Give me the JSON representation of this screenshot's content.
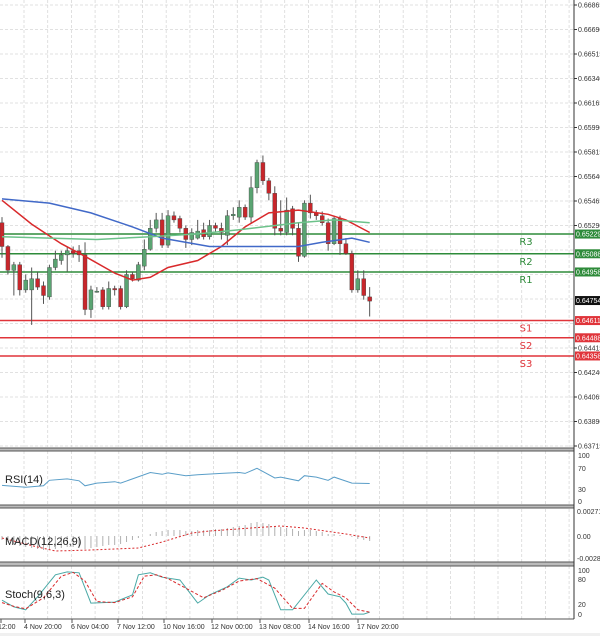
{
  "colors": {
    "bull": "#5aa472",
    "bear": "#c8262b",
    "resistance": "#2e8b3a",
    "support": "#e0343a",
    "current": "#111111",
    "ma_fast": "#d9292b",
    "ma_slow": "#4169c8",
    "ma_mid": "#6cc28a",
    "rsi": "#5a9ec8",
    "stoch_main": "#4aa9a6",
    "stoch_signal": "#d9292b",
    "macd_signal": "#d9292b",
    "macd_hist": "#b0b0b0",
    "grid": "#d8d8d8"
  },
  "chart_data": [
    {
      "type": "candlestick",
      "ylim": [
        0.63715,
        0.66865
      ],
      "y_ticks": [
        "0.66865",
        "0.66690",
        "0.66515",
        "0.66340",
        "0.66165",
        "0.65990",
        "0.65815",
        "0.65640",
        "0.65465",
        "0.65290",
        "0.64415",
        "0.64240",
        "0.64065",
        "0.63890",
        "0.63715"
      ],
      "x_ticks": [
        "12:00",
        "4 Nov 20:00",
        "6 Nov 04:00",
        "7 Nov 12:00",
        "10 Nov 16:00",
        "12 Nov 00:00",
        "13 Nov 08:00",
        "14 Nov 16:00",
        "17 Nov 20:00"
      ],
      "grid": true,
      "ohlc": [
        [
          0.6531,
          0.6535,
          0.6506,
          0.6514
        ],
        [
          0.6514,
          0.6515,
          0.6494,
          0.6497
        ],
        [
          0.6497,
          0.6503,
          0.6479,
          0.6501
        ],
        [
          0.6501,
          0.6503,
          0.6479,
          0.6483
        ],
        [
          0.6483,
          0.6494,
          0.6481,
          0.649
        ],
        [
          0.6483,
          0.6499,
          0.6458,
          0.6491
        ],
        [
          0.6491,
          0.6496,
          0.6483,
          0.6485
        ],
        [
          0.6486,
          0.6489,
          0.6473,
          0.6479
        ],
        [
          0.6478,
          0.6501,
          0.6476,
          0.6499
        ],
        [
          0.6499,
          0.6511,
          0.6497,
          0.6505
        ],
        [
          0.6504,
          0.6511,
          0.6501,
          0.6508
        ],
        [
          0.6508,
          0.6514,
          0.6496,
          0.6511
        ],
        [
          0.6511,
          0.6514,
          0.6506,
          0.6509
        ],
        [
          0.6511,
          0.6515,
          0.6503,
          0.6508
        ],
        [
          0.6508,
          0.6517,
          0.6465,
          0.6469
        ],
        [
          0.6469,
          0.6486,
          0.6463,
          0.6483
        ],
        [
          0.6482,
          0.6485,
          0.6481,
          0.6482
        ],
        [
          0.6483,
          0.6485,
          0.6469,
          0.6471
        ],
        [
          0.6471,
          0.6489,
          0.6469,
          0.6484
        ],
        [
          0.6484,
          0.6486,
          0.6479,
          0.6483
        ],
        [
          0.6484,
          0.6486,
          0.6469,
          0.6471
        ],
        [
          0.6471,
          0.6497,
          0.647,
          0.6494
        ],
        [
          0.6494,
          0.6496,
          0.6489,
          0.6491
        ],
        [
          0.649,
          0.6503,
          0.6489,
          0.6501
        ],
        [
          0.65,
          0.6519,
          0.6497,
          0.6512
        ],
        [
          0.6512,
          0.6533,
          0.6511,
          0.6527
        ],
        [
          0.6527,
          0.6538,
          0.6524,
          0.6533
        ],
        [
          0.6533,
          0.6538,
          0.6513,
          0.6515
        ],
        [
          0.6515,
          0.654,
          0.6513,
          0.6536
        ],
        [
          0.6536,
          0.6539,
          0.6531,
          0.6533
        ],
        [
          0.6534,
          0.6536,
          0.6524,
          0.6527
        ],
        [
          0.6527,
          0.6529,
          0.6513,
          0.6519
        ],
        [
          0.6519,
          0.6527,
          0.6515,
          0.6524
        ],
        [
          0.652,
          0.6533,
          0.6519,
          0.6525
        ],
        [
          0.6526,
          0.6531,
          0.6519,
          0.6521
        ],
        [
          0.6521,
          0.6533,
          0.6519,
          0.6529
        ],
        [
          0.6529,
          0.6531,
          0.6524,
          0.6527
        ],
        [
          0.6527,
          0.6531,
          0.6519,
          0.6524
        ],
        [
          0.6522,
          0.654,
          0.6515,
          0.6536
        ],
        [
          0.6536,
          0.6542,
          0.6533,
          0.6537
        ],
        [
          0.6535,
          0.6547,
          0.6531,
          0.6542
        ],
        [
          0.6542,
          0.6544,
          0.6533,
          0.6535
        ],
        [
          0.6535,
          0.6564,
          0.6531,
          0.6556
        ],
        [
          0.6556,
          0.6576,
          0.6552,
          0.6574
        ],
        [
          0.6574,
          0.6579,
          0.6558,
          0.6561
        ],
        [
          0.6561,
          0.6563,
          0.6547,
          0.6552
        ],
        [
          0.6552,
          0.6557,
          0.6522,
          0.6527
        ],
        [
          0.6527,
          0.6547,
          0.6522,
          0.6525
        ],
        [
          0.6524,
          0.6549,
          0.6522,
          0.654
        ],
        [
          0.6541,
          0.6543,
          0.6522,
          0.6527
        ],
        [
          0.6527,
          0.6531,
          0.6503,
          0.6507
        ],
        [
          0.6507,
          0.6547,
          0.6506,
          0.6545
        ],
        [
          0.6545,
          0.6551,
          0.6534,
          0.6538
        ],
        [
          0.6538,
          0.654,
          0.6533,
          0.6536
        ],
        [
          0.6536,
          0.6539,
          0.6529,
          0.6531
        ],
        [
          0.6531,
          0.6534,
          0.6511,
          0.6516
        ],
        [
          0.6516,
          0.6536,
          0.6515,
          0.6534
        ],
        [
          0.6534,
          0.6536,
          0.6508,
          0.6516
        ],
        [
          0.6516,
          0.652,
          0.6508,
          0.6509
        ],
        [
          0.6509,
          0.6511,
          0.6481,
          0.6483
        ],
        [
          0.6483,
          0.6497,
          0.6481,
          0.6491
        ],
        [
          0.6491,
          0.6497,
          0.6476,
          0.6479
        ],
        [
          0.6478,
          0.6485,
          0.6464,
          0.6475
        ]
      ],
      "moving_averages": [
        {
          "color_key": "ma_fast",
          "points": [
            [
              0,
              0.6547
            ],
            [
              5,
              0.653
            ],
            [
              10,
              0.6516
            ],
            [
              14,
              0.6507
            ],
            [
              19,
              0.6495
            ],
            [
              22,
              0.649
            ],
            [
              25,
              0.6492
            ],
            [
              28,
              0.6499
            ],
            [
              33,
              0.6504
            ],
            [
              37,
              0.6514
            ],
            [
              41,
              0.6528
            ],
            [
              45,
              0.6538
            ],
            [
              50,
              0.654
            ],
            [
              55,
              0.6537
            ],
            [
              58,
              0.6533
            ],
            [
              62,
              0.6524
            ]
          ]
        },
        {
          "color_key": "ma_slow",
          "points": [
            [
              0,
              0.6548
            ],
            [
              8,
              0.6545
            ],
            [
              15,
              0.6538
            ],
            [
              22,
              0.6528
            ],
            [
              27,
              0.652
            ],
            [
              35,
              0.6514
            ],
            [
              43,
              0.6514
            ],
            [
              50,
              0.6514
            ],
            [
              54,
              0.6517
            ],
            [
              59,
              0.652
            ],
            [
              62,
              0.6517
            ]
          ]
        },
        {
          "color_key": "ma_mid",
          "points": [
            [
              0,
              0.6521
            ],
            [
              8,
              0.652
            ],
            [
              16,
              0.6519
            ],
            [
              25,
              0.6521
            ],
            [
              33,
              0.6523
            ],
            [
              40,
              0.6526
            ],
            [
              50,
              0.6531
            ],
            [
              56,
              0.6533
            ],
            [
              62,
              0.6531
            ]
          ]
        }
      ],
      "levels": [
        {
          "label": "R3",
          "value": "0.65229",
          "type": "resistance"
        },
        {
          "label": "R2",
          "value": "0.65088",
          "type": "resistance"
        },
        {
          "label": "R1",
          "value": "0.64958",
          "type": "resistance"
        },
        {
          "label": "S1",
          "value": "0.64611",
          "type": "support"
        },
        {
          "label": "S2",
          "value": "0.64488",
          "type": "support"
        },
        {
          "label": "S3",
          "value": "0.64358",
          "type": "support"
        }
      ],
      "current_price": "0.64754"
    },
    {
      "type": "line",
      "title": "RSI(14)",
      "ylim": [
        0,
        100
      ],
      "y_ticks": [
        "100",
        "70",
        "30",
        "0"
      ],
      "points": [
        [
          0,
          34
        ],
        [
          4,
          30
        ],
        [
          7,
          33
        ],
        [
          8,
          45
        ],
        [
          11,
          48
        ],
        [
          13,
          44
        ],
        [
          14,
          33
        ],
        [
          16,
          39
        ],
        [
          19,
          42
        ],
        [
          20,
          39
        ],
        [
          22,
          48
        ],
        [
          25,
          62
        ],
        [
          27,
          58
        ],
        [
          28,
          61
        ],
        [
          31,
          55
        ],
        [
          33,
          57
        ],
        [
          37,
          60
        ],
        [
          40,
          62
        ],
        [
          41,
          60
        ],
        [
          43,
          71
        ],
        [
          46,
          50
        ],
        [
          47,
          52
        ],
        [
          50,
          44
        ],
        [
          51,
          55
        ],
        [
          53,
          52
        ],
        [
          55,
          45
        ],
        [
          56,
          52
        ],
        [
          59,
          39
        ],
        [
          62,
          38
        ]
      ]
    },
    {
      "type": "bar+line",
      "title": "MACD(12,26,9)",
      "ylim": [
        -0.0028,
        0.00271
      ],
      "y_ticks": [
        "0.00271",
        "0.00",
        "-0.0028"
      ],
      "histogram": [
        -0.0004,
        -0.0006,
        -0.0008,
        -0.001,
        -0.0011,
        -0.0012,
        -0.0013,
        -0.0014,
        -0.0014,
        -0.0013,
        -0.0012,
        -0.0011,
        -0.0011,
        -0.0012,
        -0.0013,
        -0.0012,
        -0.0011,
        -0.001,
        -0.0009,
        -0.0009,
        -0.0008,
        -0.0006,
        -0.0004,
        -0.0002,
        0.0,
        0.0002,
        0.0004,
        0.0005,
        0.0006,
        0.0006,
        0.0006,
        0.0005,
        0.0005,
        0.0006,
        0.0006,
        0.0006,
        0.0007,
        0.0007,
        0.0008,
        0.0009,
        0.001,
        0.0011,
        0.0013,
        0.0014,
        0.0013,
        0.0012,
        0.001,
        0.0009,
        0.0008,
        0.0007,
        0.0005,
        0.0006,
        0.0006,
        0.0005,
        0.0004,
        0.0002,
        0.0002,
        0.0001,
        0.0,
        -0.0001,
        -0.0003,
        -0.0004,
        -0.0005
      ],
      "signal": [
        [
          0,
          -0.0002
        ],
        [
          6,
          -0.0011
        ],
        [
          9,
          -0.0015
        ],
        [
          15,
          -0.0014
        ],
        [
          23,
          -0.0012
        ],
        [
          27,
          -0.0006
        ],
        [
          32,
          0.0003
        ],
        [
          35,
          0.0005
        ],
        [
          42,
          0.0008
        ],
        [
          47,
          0.001
        ],
        [
          51,
          0.0008
        ],
        [
          58,
          0.0002
        ],
        [
          62,
          -0.0002
        ]
      ]
    },
    {
      "type": "line",
      "title": "Stoch(9,6,3)",
      "ylim": [
        0,
        100
      ],
      "y_ticks": [
        "100",
        "80",
        "20",
        "0"
      ],
      "main": [
        [
          0,
          35
        ],
        [
          2,
          21
        ],
        [
          4,
          15
        ],
        [
          6,
          42
        ],
        [
          9,
          88
        ],
        [
          11,
          94
        ],
        [
          13,
          92
        ],
        [
          15,
          29
        ],
        [
          19,
          31
        ],
        [
          22,
          46
        ],
        [
          23,
          88
        ],
        [
          25,
          92
        ],
        [
          27,
          83
        ],
        [
          30,
          77
        ],
        [
          33,
          29
        ],
        [
          35,
          46
        ],
        [
          38,
          63
        ],
        [
          40,
          81
        ],
        [
          42,
          77
        ],
        [
          44,
          83
        ],
        [
          45,
          77
        ],
        [
          47,
          15
        ],
        [
          49,
          15
        ],
        [
          53,
          77
        ],
        [
          55,
          48
        ],
        [
          57,
          42
        ],
        [
          58,
          29
        ],
        [
          59,
          6
        ],
        [
          61,
          6
        ],
        [
          62,
          10
        ]
      ],
      "signal": [
        [
          0,
          30
        ],
        [
          2,
          22
        ],
        [
          4,
          17
        ],
        [
          7,
          40
        ],
        [
          10,
          85
        ],
        [
          12,
          93
        ],
        [
          14,
          75
        ],
        [
          16,
          32
        ],
        [
          19,
          30
        ],
        [
          22,
          42
        ],
        [
          24,
          85
        ],
        [
          26,
          88
        ],
        [
          28,
          80
        ],
        [
          31,
          60
        ],
        [
          34,
          40
        ],
        [
          37,
          55
        ],
        [
          40,
          75
        ],
        [
          43,
          80
        ],
        [
          46,
          60
        ],
        [
          49,
          18
        ],
        [
          51,
          18
        ],
        [
          54,
          70
        ],
        [
          56,
          52
        ],
        [
          58,
          40
        ],
        [
          60,
          15
        ],
        [
          62,
          10
        ]
      ]
    }
  ]
}
